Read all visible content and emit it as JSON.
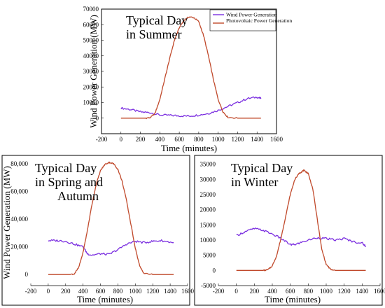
{
  "colors": {
    "wind": "#7b2fe0",
    "pv": "#c0492b",
    "frame": "#000000"
  },
  "chart_data": [
    {
      "id": "summer",
      "type": "line",
      "annotation": [
        "Typical Day",
        "in Summer"
      ],
      "xlabel": "Time (minutes)",
      "ylabel": "Wind Power Generation (MW)",
      "xlim": [
        -200,
        1600
      ],
      "ylim": [
        -10000,
        70000
      ],
      "xticks": [
        -200,
        0,
        200,
        400,
        600,
        800,
        1000,
        1200,
        1400,
        1600
      ],
      "yticks": [
        0,
        10000,
        20000,
        30000,
        40000,
        50000,
        60000,
        70000
      ],
      "ytick_labels": [
        "0",
        "10000",
        "20000",
        "30000",
        "40000",
        "50000",
        "60000",
        "70000"
      ],
      "legend": {
        "position": "top-right",
        "entries": [
          "Wind Power Generation",
          "Photovoltaic Power Generation"
        ]
      },
      "series": [
        {
          "name": "Wind Power Generation",
          "color_key": "wind",
          "x": [
            0,
            100,
            200,
            300,
            400,
            500,
            600,
            700,
            800,
            900,
            1000,
            1100,
            1200,
            1300,
            1400,
            1440
          ],
          "y": [
            6500,
            5500,
            4000,
            3500,
            2000,
            1800,
            1500,
            1300,
            2000,
            3000,
            5000,
            7500,
            10000,
            12500,
            13500,
            12500
          ]
        },
        {
          "name": "Photovoltaic Power Generation",
          "color_key": "pv",
          "x": [
            0,
            250,
            300,
            350,
            400,
            450,
            500,
            550,
            600,
            650,
            700,
            750,
            800,
            850,
            900,
            950,
            1000,
            1050,
            1100,
            1200,
            1440
          ],
          "y": [
            0,
            0,
            200,
            3000,
            12000,
            25000,
            38000,
            50000,
            58000,
            63000,
            65000,
            64500,
            62000,
            53000,
            40000,
            25000,
            12000,
            4000,
            500,
            0,
            0
          ]
        }
      ]
    },
    {
      "id": "spring-autumn",
      "type": "line",
      "annotation": [
        "Typical Day",
        "in Spring and",
        "Autumn"
      ],
      "xlabel": "Time (minutes)",
      "ylabel": "Wind Power Generation (MW)",
      "xlim": [
        -200,
        1600
      ],
      "ylim": [
        -8000,
        84000
      ],
      "xticks": [
        -200,
        0,
        200,
        400,
        600,
        800,
        1000,
        1200,
        1400,
        1600
      ],
      "yticks": [
        0,
        20000,
        40000,
        60000,
        80000
      ],
      "ytick_labels": [
        "0",
        "20,000",
        "40,000",
        "60,000",
        "80,000"
      ],
      "series": [
        {
          "name": "Wind Power Generation",
          "color_key": "wind",
          "x": [
            0,
            100,
            200,
            300,
            400,
            450,
            500,
            600,
            700,
            800,
            900,
            1000,
            1100,
            1200,
            1300,
            1440
          ],
          "y": [
            24500,
            24500,
            24000,
            22000,
            20000,
            15000,
            14000,
            15000,
            14500,
            18000,
            22000,
            24000,
            23000,
            24000,
            24500,
            23000
          ]
        },
        {
          "name": "Photovoltaic Power Generation",
          "color_key": "pv",
          "x": [
            0,
            250,
            300,
            350,
            400,
            450,
            500,
            550,
            600,
            650,
            700,
            750,
            800,
            850,
            900,
            950,
            1000,
            1050,
            1100,
            1200,
            1440
          ],
          "y": [
            0,
            0,
            500,
            5000,
            16000,
            32000,
            50000,
            65000,
            75000,
            79500,
            81000,
            80000,
            76000,
            67000,
            53000,
            36000,
            19000,
            6000,
            800,
            0,
            0
          ]
        }
      ]
    },
    {
      "id": "winter",
      "type": "line",
      "annotation": [
        "Typical Day",
        "in Winter"
      ],
      "xlabel": "Time (minutes)",
      "ylabel": "",
      "xlim": [
        -200,
        1600
      ],
      "ylim": [
        -5000,
        37000
      ],
      "xticks": [
        -200,
        0,
        200,
        400,
        600,
        800,
        1000,
        1200,
        1400,
        1600
      ],
      "yticks": [
        -5000,
        0,
        5000,
        10000,
        15000,
        20000,
        25000,
        30000,
        35000
      ],
      "ytick_labels": [
        "-5000",
        "0",
        "5000",
        "10000",
        "15000",
        "20000",
        "25000",
        "30000",
        "35000"
      ],
      "series": [
        {
          "name": "Wind Power Generation",
          "color_key": "wind",
          "x": [
            0,
            100,
            200,
            300,
            400,
            500,
            600,
            650,
            700,
            800,
            900,
            1000,
            1100,
            1200,
            1300,
            1400,
            1440
          ],
          "y": [
            11500,
            12800,
            13800,
            13200,
            12000,
            10500,
            8500,
            8500,
            9000,
            10000,
            10800,
            10500,
            10000,
            10500,
            9500,
            9000,
            8000
          ]
        },
        {
          "name": "Photovoltaic Power Generation",
          "color_key": "pv",
          "x": [
            0,
            300,
            350,
            400,
            450,
            500,
            550,
            600,
            650,
            700,
            725,
            750,
            775,
            800,
            850,
            900,
            950,
            1000,
            1050,
            1100,
            1440
          ],
          "y": [
            0,
            0,
            200,
            1500,
            5000,
            11000,
            18000,
            25000,
            30000,
            32000,
            32500,
            33000,
            32500,
            32000,
            27000,
            17000,
            7000,
            2000,
            300,
            0,
            0
          ]
        }
      ]
    }
  ]
}
